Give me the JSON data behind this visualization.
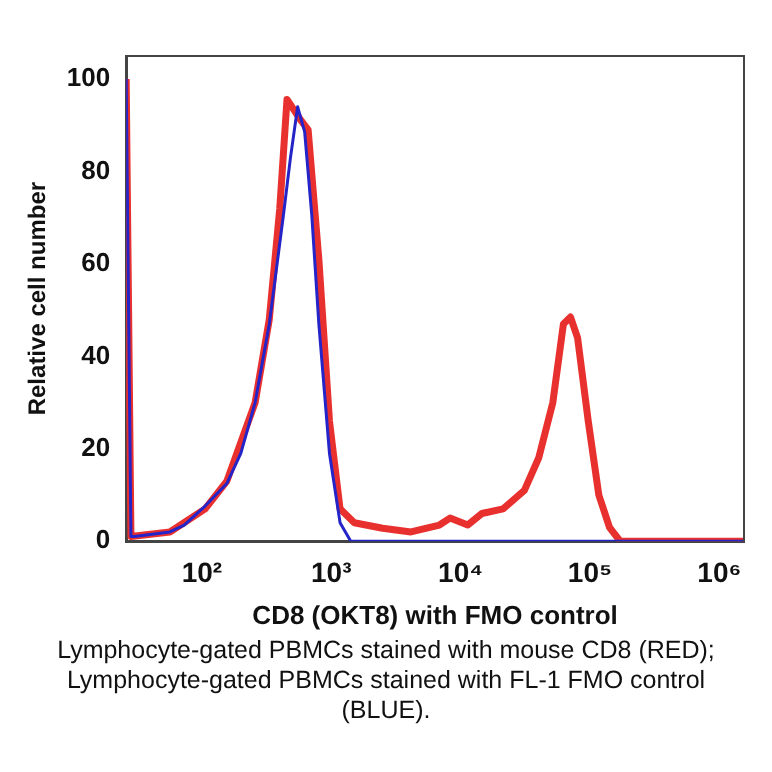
{
  "chart_data": {
    "type": "line",
    "xlabel": "CD8 (OKT8) with FMO control",
    "ylabel": "Relative cell number",
    "log": "x",
    "xlim": [
      26,
      1550000
    ],
    "xticks": [
      {
        "value": 100,
        "label": "10²"
      },
      {
        "value": 1000,
        "label": "10³"
      },
      {
        "value": 10000,
        "label": "10⁴"
      },
      {
        "value": 100000,
        "label": "10⁵"
      },
      {
        "value": 1000000,
        "label": "10⁶"
      }
    ],
    "ylim": [
      0,
      105
    ],
    "yticks": [
      0,
      20,
      40,
      60,
      80,
      100
    ],
    "grid": false,
    "legend": false,
    "marker": "none",
    "line_style": "solid",
    "annotations": [
      "Lymphocyte-gated PBMCs stained with mouse CD8 (RED); Lymphocyte-gated PBMCs stained with FL-1 FMO control (BLUE)."
    ],
    "series": [
      {
        "color": "#e8312f",
        "x": [
          26,
          28.3,
          56.6,
          106,
          156,
          258,
          332,
          400,
          455,
          585,
          663,
          802,
          969,
          1170,
          1507,
          2495,
          4130,
          6850,
          8280,
          11350,
          14600,
          21300,
          31100,
          40100,
          51600,
          62300,
          70700,
          80200,
          96900,
          117000,
          141500,
          171000,
          1550000
        ],
        "values": [
          100,
          1,
          2,
          7,
          13,
          30,
          48,
          72,
          95.6,
          91,
          89,
          61,
          26,
          7,
          4,
          2.8,
          2,
          3.5,
          5,
          3.5,
          6,
          7,
          11,
          18,
          30,
          47,
          48.5,
          44,
          26,
          10,
          3,
          0,
          0
        ]
      },
      {
        "color": "#2424c8",
        "x": [
          26,
          28.3,
          30.1,
          56.6,
          73,
          106,
          156,
          200,
          258,
          332,
          427,
          484,
          550,
          623,
          707,
          802,
          969,
          1170,
          1415,
          1550000
        ],
        "values": [
          100,
          1,
          1,
          2,
          3.5,
          7.6,
          12.5,
          19,
          30,
          47,
          70.6,
          83,
          94,
          88.6,
          70.6,
          47,
          19,
          4,
          0,
          0
        ]
      }
    ]
  }
}
